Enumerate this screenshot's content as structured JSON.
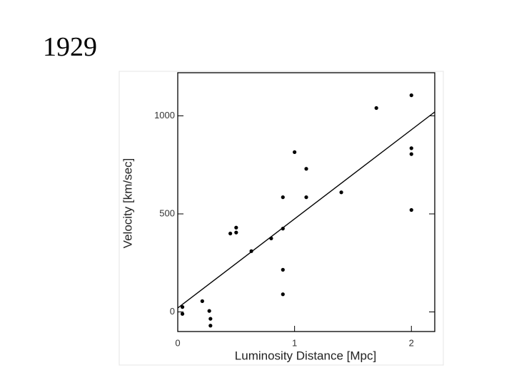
{
  "slide_title": "1929",
  "chart_data": {
    "type": "scatter",
    "x_label": "Luminosity Distance [Mpc]",
    "y_label": "Velocity [km/sec]",
    "x": [
      0.04,
      0.04,
      0.21,
      0.27,
      0.28,
      0.28,
      0.45,
      0.5,
      0.5,
      0.63,
      0.8,
      0.9,
      0.9,
      0.9,
      0.9,
      1.0,
      1.1,
      1.1,
      1.4,
      1.7,
      2.0,
      2.0,
      2.0,
      2.0
    ],
    "values": [
      25,
      -10,
      55,
      5,
      -35,
      -70,
      400,
      430,
      405,
      310,
      375,
      585,
      425,
      215,
      90,
      815,
      730,
      585,
      610,
      1040,
      1105,
      835,
      805,
      520
    ],
    "color": "#000000",
    "fit_line": {
      "x": [
        0,
        2.2
      ],
      "values": [
        20,
        1020
      ]
    },
    "xlim": [
      0,
      2.2
    ],
    "ylim": [
      -100,
      1220
    ],
    "xticks": [
      0,
      1,
      2
    ],
    "yticks": [
      0,
      500,
      1000
    ]
  }
}
